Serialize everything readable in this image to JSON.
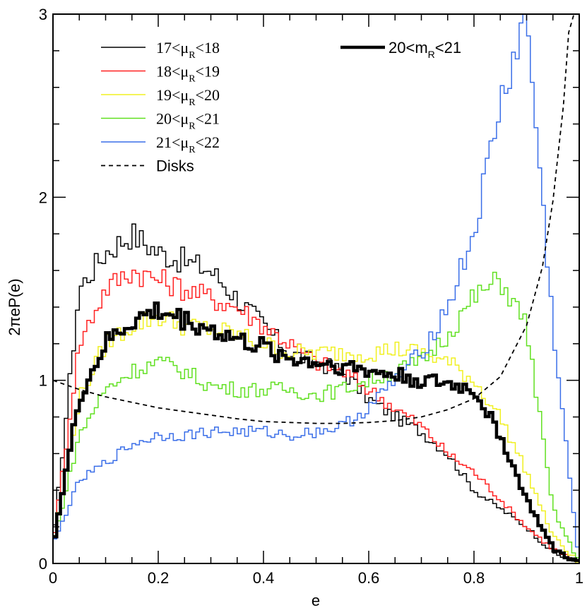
{
  "chart_data": {
    "type": "line",
    "step": true,
    "title": "",
    "xlabel": "e",
    "ylabel": "2πeP(e)",
    "xlim": [
      0,
      1
    ],
    "ylim": [
      0,
      3
    ],
    "x_ticks": [
      0,
      0.2,
      0.4,
      0.6,
      0.8,
      1
    ],
    "x_tick_labels": [
      "0",
      "0.2",
      "0.4",
      "0.6",
      "0.8",
      "1"
    ],
    "y_ticks": [
      0,
      1,
      2,
      3
    ],
    "y_tick_labels": [
      "0",
      "1",
      "2",
      "3"
    ],
    "grid": false,
    "legend_left": {
      "placement": "top-left",
      "entries": [
        {
          "series": "mu17",
          "pre": "17<μ",
          "sub": "R",
          "post": "<18"
        },
        {
          "series": "mu18",
          "pre": "18<μ",
          "sub": "R",
          "post": "<19"
        },
        {
          "series": "mu19",
          "pre": "19<μ",
          "sub": "R",
          "post": "<20"
        },
        {
          "series": "mu20",
          "pre": "20<μ",
          "sub": "R",
          "post": "<21"
        },
        {
          "series": "mu21",
          "pre": "21<μ",
          "sub": "R",
          "post": "<22"
        },
        {
          "series": "disks",
          "pre": "Disks",
          "sub": "",
          "post": ""
        }
      ]
    },
    "legend_right": {
      "placement": "top-center",
      "entries": [
        {
          "series": "m20",
          "pre": "20<m",
          "sub": "R",
          "post": "<21"
        }
      ]
    },
    "x": [
      0.0,
      0.05,
      0.1,
      0.15,
      0.2,
      0.25,
      0.3,
      0.35,
      0.4,
      0.45,
      0.5,
      0.55,
      0.6,
      0.65,
      0.7,
      0.75,
      0.8,
      0.85,
      0.9,
      0.95,
      1.0
    ],
    "series": [
      {
        "id": "mu17",
        "name": "17<μR<18",
        "color": "#000000",
        "width": 1.5,
        "dash": "",
        "values": [
          0.1,
          1.5,
          1.7,
          1.8,
          1.7,
          1.65,
          1.6,
          1.45,
          1.3,
          1.15,
          1.1,
          1.05,
          0.9,
          0.8,
          0.72,
          0.6,
          0.4,
          0.3,
          0.2,
          0.06,
          0.0
        ]
      },
      {
        "id": "mu18",
        "name": "18<μR<19",
        "color": "#ff2020",
        "width": 1.5,
        "dash": "",
        "values": [
          0.1,
          1.2,
          1.5,
          1.6,
          1.55,
          1.5,
          1.45,
          1.4,
          1.3,
          1.2,
          1.1,
          1.05,
          0.95,
          0.85,
          0.75,
          0.6,
          0.5,
          0.35,
          0.2,
          0.08,
          0.0
        ]
      },
      {
        "id": "mu19",
        "name": "19<μR<20",
        "color": "#f0f020",
        "width": 1.5,
        "dash": "",
        "values": [
          0.1,
          0.9,
          1.2,
          1.3,
          1.35,
          1.3,
          1.28,
          1.25,
          1.2,
          1.15,
          1.15,
          1.15,
          1.15,
          1.17,
          1.15,
          1.1,
          1.0,
          0.8,
          0.5,
          0.15,
          0.0
        ]
      },
      {
        "id": "mu20",
        "name": "20<μR<21",
        "color": "#60e020",
        "width": 1.5,
        "dash": "",
        "values": [
          0.1,
          0.7,
          0.95,
          1.05,
          1.1,
          1.05,
          0.97,
          0.95,
          0.95,
          0.95,
          0.92,
          0.95,
          1.0,
          1.05,
          1.1,
          1.25,
          1.45,
          1.55,
          1.3,
          0.3,
          0.0
        ]
      },
      {
        "id": "mu21",
        "name": "21<μR<22",
        "color": "#3a6ee8",
        "width": 1.5,
        "dash": "",
        "values": [
          0.1,
          0.45,
          0.55,
          0.65,
          0.7,
          0.7,
          0.72,
          0.72,
          0.72,
          0.7,
          0.72,
          0.75,
          0.85,
          1.0,
          1.15,
          1.4,
          1.8,
          2.5,
          3.0,
          1.3,
          0.0
        ]
      },
      {
        "id": "m20",
        "name": "20<mR<21",
        "color": "#000000",
        "width": 4.5,
        "dash": "",
        "values": [
          0.1,
          0.9,
          1.2,
          1.32,
          1.38,
          1.33,
          1.28,
          1.22,
          1.18,
          1.12,
          1.1,
          1.08,
          1.05,
          1.03,
          1.0,
          0.98,
          0.95,
          0.7,
          0.35,
          0.08,
          0.0
        ]
      }
    ],
    "curves": [
      {
        "id": "disks",
        "name": "Disks",
        "color": "#000000",
        "width": 1.8,
        "dash": "6,5",
        "x": [
          0.0,
          0.05,
          0.1,
          0.15,
          0.2,
          0.25,
          0.3,
          0.35,
          0.4,
          0.45,
          0.5,
          0.55,
          0.6,
          0.65,
          0.7,
          0.75,
          0.8,
          0.85,
          0.9,
          0.93,
          0.95,
          0.97,
          0.98,
          0.99
        ],
        "values": [
          1.0,
          0.95,
          0.91,
          0.88,
          0.85,
          0.83,
          0.81,
          0.79,
          0.775,
          0.77,
          0.765,
          0.765,
          0.77,
          0.78,
          0.8,
          0.84,
          0.9,
          1.02,
          1.3,
          1.62,
          1.98,
          2.5,
          2.9,
          3.0
        ]
      }
    ]
  }
}
